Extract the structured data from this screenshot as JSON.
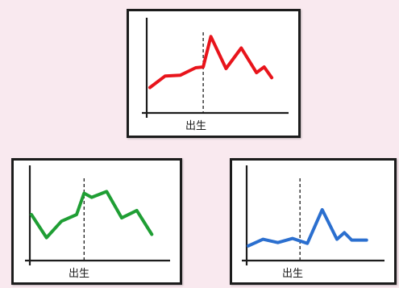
{
  "chart_data": [
    {
      "type": "line",
      "color": "#e8141b",
      "marker_label": "出生",
      "marker_x": 3.5,
      "xlim": [
        0,
        9
      ],
      "ylim": [
        0,
        10
      ],
      "series": [
        {
          "x": [
            0,
            1,
            2,
            3,
            3.5,
            4,
            5,
            6,
            7,
            7.5,
            8
          ],
          "y": [
            2.5,
            3.9,
            4.0,
            4.9,
            5.0,
            8.7,
            4.8,
            7.3,
            4.3,
            5.0,
            3.7
          ]
        }
      ]
    },
    {
      "type": "line",
      "color": "#1f9e34",
      "marker_label": "出生",
      "marker_x": 3.5,
      "xlim": [
        0,
        9
      ],
      "ylim": [
        0,
        10
      ],
      "series": [
        {
          "x": [
            0,
            1,
            2,
            3,
            3.5,
            4,
            5,
            6,
            7,
            8
          ],
          "y": [
            5.0,
            2.2,
            4.2,
            5.0,
            7.6,
            7.1,
            7.8,
            4.6,
            5.5,
            2.6
          ]
        }
      ]
    },
    {
      "type": "line",
      "color": "#2b6fcf",
      "marker_label": "出生",
      "marker_x": 3.5,
      "xlim": [
        0,
        9
      ],
      "ylim": [
        0,
        10
      ],
      "series": [
        {
          "x": [
            0,
            1,
            2,
            3,
            4,
            5,
            6,
            6.5,
            7,
            8
          ],
          "y": [
            1.2,
            2.0,
            1.6,
            2.1,
            1.5,
            5.6,
            2.0,
            2.8,
            1.9,
            1.9
          ]
        }
      ]
    }
  ]
}
